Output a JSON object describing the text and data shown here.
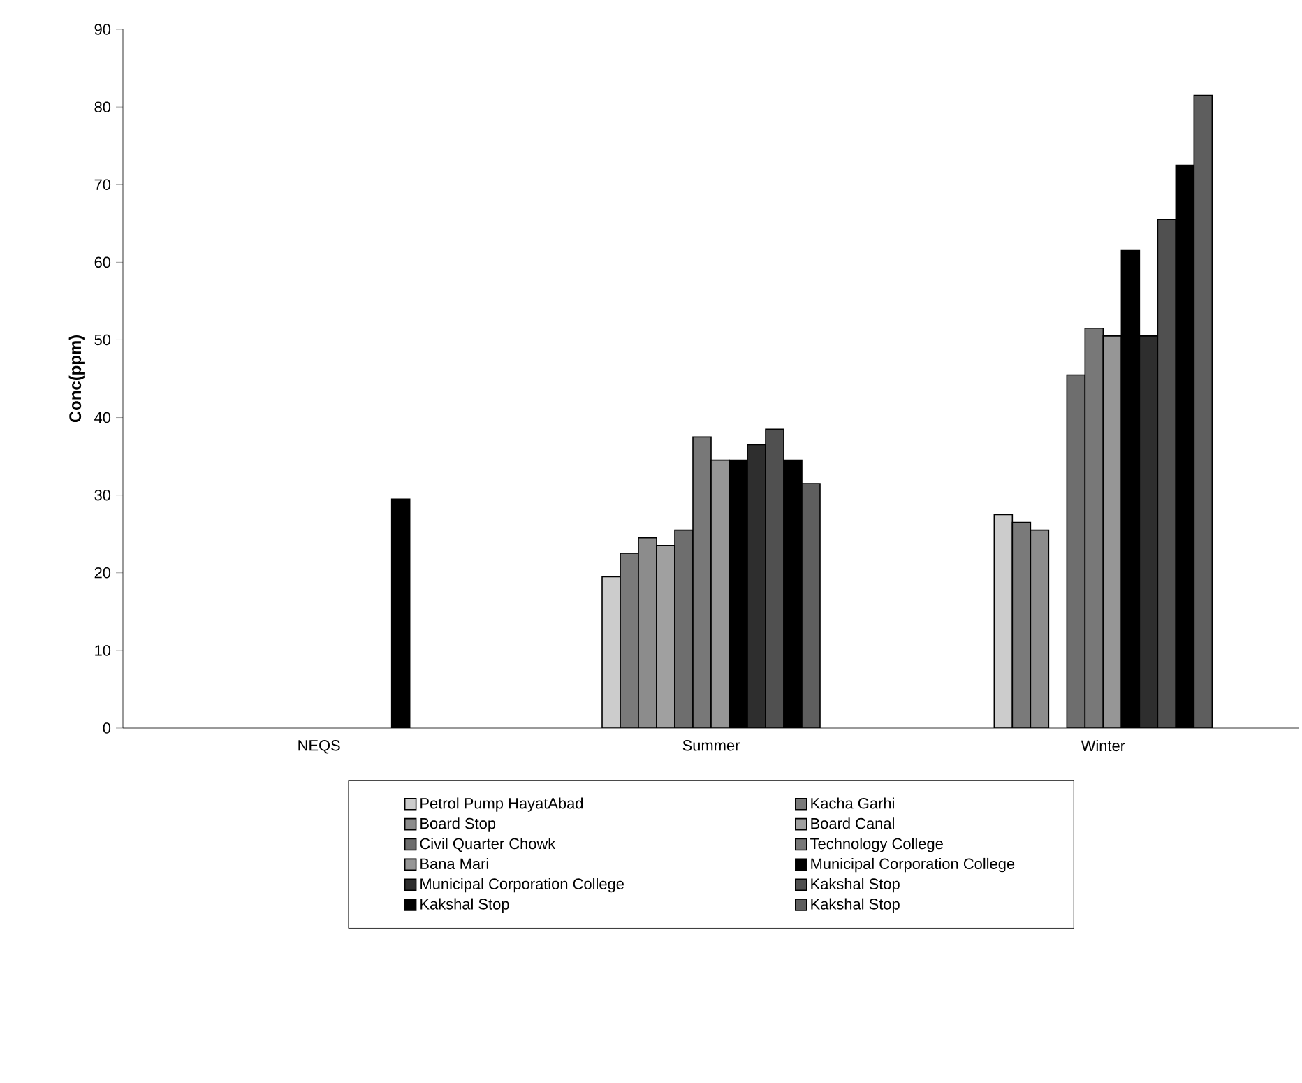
{
  "chart_data": {
    "type": "bar",
    "ylabel": "Conc(ppm)",
    "categories": [
      "NEQS",
      "Summer",
      "Winter"
    ],
    "ylim": [
      0,
      90
    ],
    "yticks": [
      0,
      10,
      20,
      30,
      40,
      50,
      60,
      70,
      80,
      90
    ],
    "grid": false,
    "legend": "bottom",
    "series": [
      {
        "name": "Petrol Pump HayatAbad",
        "color": "#cccccc",
        "values": [
          null,
          19.5,
          27.5
        ]
      },
      {
        "name": "Kacha Garhi",
        "color": "#7a7a7a",
        "values": [
          null,
          22.5,
          26.5
        ]
      },
      {
        "name": "Board Stop",
        "color": "#8c8c8c",
        "values": [
          null,
          24.5,
          25.5
        ]
      },
      {
        "name": "Board Canal",
        "color": "#a0a0a0",
        "values": [
          null,
          23.5,
          null
        ]
      },
      {
        "name": "Civil Quarter Chowk",
        "color": "#6e6e6e",
        "values": [
          null,
          25.5,
          45.5
        ]
      },
      {
        "name": "Technology College",
        "color": "#787878",
        "values": [
          null,
          37.5,
          51.5
        ]
      },
      {
        "name": "Bana Mari",
        "color": "#969696",
        "values": [
          null,
          34.5,
          50.5
        ]
      },
      {
        "name": "Municipal Corporation College",
        "color": "#000000",
        "values": [
          null,
          34.5,
          61.5
        ]
      },
      {
        "name": "Municipal Corporation College",
        "color": "#2e2e2e",
        "values": [
          null,
          36.5,
          50.5
        ]
      },
      {
        "name": "Kakshal Stop",
        "color": "#505050",
        "values": [
          null,
          38.5,
          65.5
        ]
      },
      {
        "name": "Kakshal Stop",
        "color": "#000000",
        "values": [
          29.5,
          34.5,
          72.5
        ]
      },
      {
        "name": "Kakshal Stop",
        "color": "#5e5e5e",
        "values": [
          null,
          31.5,
          81.5
        ]
      }
    ]
  }
}
